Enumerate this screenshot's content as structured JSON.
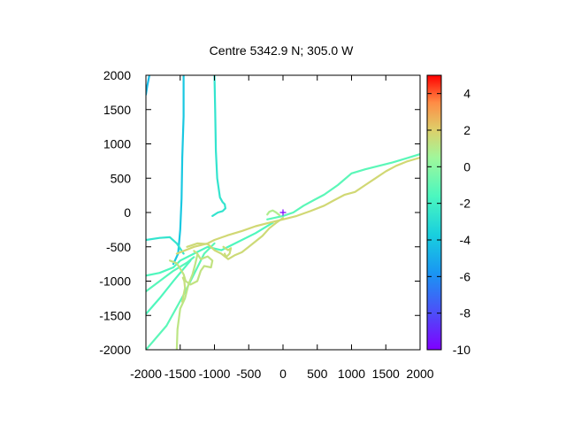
{
  "chart_data": {
    "type": "line",
    "title": "Centre 5342.9 N; 305.0  W",
    "xlabel": "",
    "ylabel": "",
    "xlim": [
      -2000,
      2000
    ],
    "ylim": [
      -2000,
      2000
    ],
    "xticks": [
      -2000,
      -1500,
      -1000,
      -500,
      0,
      500,
      1000,
      1500,
      2000
    ],
    "yticks": [
      -2000,
      -1500,
      -1000,
      -500,
      0,
      500,
      1000,
      1500,
      2000
    ],
    "colorbar": {
      "range": [
        -10,
        5
      ],
      "ticks": [
        -10,
        -8,
        -6,
        -4,
        -2,
        0,
        2,
        4
      ],
      "colormap": "rainbow"
    },
    "centre_marker": {
      "x": 0,
      "y": 0,
      "symbol": "+",
      "color": "#7f00ff"
    },
    "grid": false,
    "series": [
      {
        "value": -4.0,
        "points": [
          [
            -1450,
            2000
          ],
          [
            -1450,
            1400
          ],
          [
            -1470,
            800
          ],
          [
            -1480,
            200
          ],
          [
            -1500,
            -250
          ],
          [
            -1530,
            -600
          ],
          [
            -1600,
            -750
          ]
        ]
      },
      {
        "value": -2.6,
        "points": [
          [
            -1000,
            2000
          ],
          [
            -990,
            1500
          ],
          [
            -980,
            900
          ],
          [
            -960,
            500
          ],
          [
            -920,
            220
          ],
          [
            -880,
            150
          ],
          [
            -850,
            120
          ],
          [
            -840,
            60
          ],
          [
            -880,
            20
          ],
          [
            -950,
            0
          ],
          [
            -1030,
            -50
          ]
        ]
      },
      {
        "value": -4.5,
        "points": [
          [
            -2000,
            1720
          ],
          [
            -1980,
            1850
          ],
          [
            -1950,
            2000
          ]
        ]
      },
      {
        "value": -2.6,
        "points": [
          [
            -2000,
            -400
          ],
          [
            -1800,
            -370
          ],
          [
            -1650,
            -360
          ],
          [
            -1550,
            -450
          ],
          [
            -1450,
            -600
          ]
        ]
      },
      {
        "value": -1.5,
        "points": [
          [
            -2000,
            -920
          ],
          [
            -1800,
            -880
          ],
          [
            -1600,
            -800
          ],
          [
            -1500,
            -700
          ],
          [
            -1300,
            -600
          ],
          [
            -1100,
            -500
          ],
          [
            -900,
            -550
          ],
          [
            -700,
            -450
          ],
          [
            -400,
            -300
          ],
          [
            -150,
            -150
          ]
        ]
      },
      {
        "value": -1.3,
        "points": [
          [
            -2000,
            -1150
          ],
          [
            -1800,
            -1000
          ],
          [
            -1600,
            -850
          ],
          [
            -1400,
            -730
          ],
          [
            -1300,
            -650
          ]
        ]
      },
      {
        "value": -1.5,
        "points": [
          [
            -2000,
            -1480
          ],
          [
            -1800,
            -1250
          ],
          [
            -1600,
            -1000
          ],
          [
            -1450,
            -820
          ],
          [
            -1350,
            -700
          ]
        ]
      },
      {
        "value": -1.2,
        "points": [
          [
            -2000,
            -2000
          ],
          [
            -1700,
            -1650
          ],
          [
            -1450,
            -1200
          ],
          [
            -1300,
            -900
          ],
          [
            -1150,
            -600
          ],
          [
            -1000,
            -450
          ]
        ]
      },
      {
        "value": -1.2,
        "points": [
          [
            -230,
            -100
          ],
          [
            0,
            -50
          ],
          [
            150,
            0
          ],
          [
            300,
            100
          ],
          [
            450,
            180
          ],
          [
            600,
            260
          ],
          [
            800,
            400
          ],
          [
            1000,
            570
          ],
          [
            1200,
            630
          ],
          [
            1400,
            680
          ],
          [
            1600,
            730
          ],
          [
            1800,
            790
          ],
          [
            2000,
            850
          ]
        ]
      },
      {
        "value": 1.7,
        "points": [
          [
            -1550,
            -600
          ],
          [
            -1300,
            -500
          ],
          [
            -1100,
            -450
          ],
          [
            -1000,
            -400
          ],
          [
            -800,
            -330
          ],
          [
            -600,
            -270
          ],
          [
            -400,
            -200
          ],
          [
            -200,
            -150
          ],
          [
            0,
            -100
          ],
          [
            200,
            -50
          ],
          [
            400,
            20
          ],
          [
            600,
            100
          ],
          [
            750,
            180
          ],
          [
            900,
            260
          ],
          [
            1050,
            300
          ],
          [
            1200,
            400
          ],
          [
            1350,
            500
          ],
          [
            1500,
            600
          ],
          [
            1650,
            680
          ],
          [
            1800,
            740
          ],
          [
            2000,
            800
          ]
        ]
      },
      {
        "value": 1.6,
        "points": [
          [
            -1400,
            -500
          ],
          [
            -1250,
            -450
          ],
          [
            -1100,
            -460
          ],
          [
            -1000,
            -550
          ],
          [
            -900,
            -600
          ],
          [
            -800,
            -680
          ],
          [
            -700,
            -620
          ],
          [
            -600,
            -580
          ],
          [
            -500,
            -500
          ],
          [
            -400,
            -420
          ],
          [
            -300,
            -340
          ],
          [
            -200,
            -230
          ],
          [
            -100,
            -150
          ],
          [
            0,
            -80
          ]
        ]
      },
      {
        "value": 1.3,
        "points": [
          [
            -1650,
            -700
          ],
          [
            -1550,
            -740
          ],
          [
            -1500,
            -820
          ],
          [
            -1450,
            -900
          ],
          [
            -1420,
            -1000
          ],
          [
            -1350,
            -1050
          ],
          [
            -1250,
            -1000
          ],
          [
            -1200,
            -850
          ],
          [
            -1150,
            -780
          ],
          [
            -1050,
            -800
          ],
          [
            -1030,
            -700
          ],
          [
            -1100,
            -640
          ],
          [
            -1200,
            -680
          ],
          [
            -1250,
            -600
          ],
          [
            -1300,
            -560
          ]
        ]
      },
      {
        "value": 1.2,
        "points": [
          [
            -1550,
            -2000
          ],
          [
            -1540,
            -1700
          ],
          [
            -1500,
            -1400
          ],
          [
            -1430,
            -1250
          ],
          [
            -1380,
            -1050
          ],
          [
            -1320,
            -900
          ],
          [
            -1280,
            -750
          ],
          [
            -1250,
            -620
          ]
        ]
      },
      {
        "value": 1.4,
        "points": [
          [
            -1470,
            -1300
          ],
          [
            -1450,
            -1200
          ],
          [
            -1430,
            -1100
          ],
          [
            -1440,
            -1000
          ],
          [
            -1460,
            -950
          ]
        ]
      },
      {
        "value": 0.9,
        "points": [
          [
            -230,
            -30
          ],
          [
            -200,
            10
          ],
          [
            -150,
            30
          ],
          [
            -100,
            0
          ],
          [
            -50,
            -40
          ]
        ]
      },
      {
        "value": 1.5,
        "points": [
          [
            -870,
            -500
          ],
          [
            -800,
            -550
          ],
          [
            -760,
            -520
          ],
          [
            -780,
            -600
          ],
          [
            -830,
            -650
          ],
          [
            -850,
            -600
          ]
        ]
      }
    ]
  }
}
